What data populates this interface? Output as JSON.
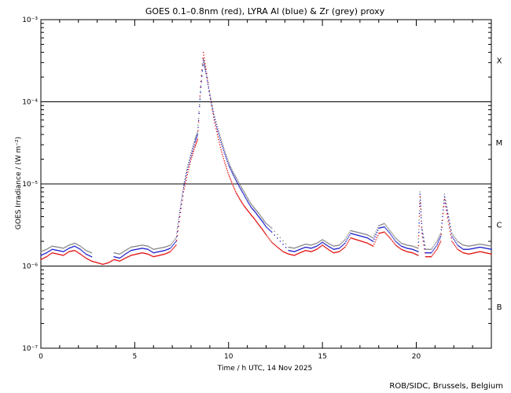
{
  "chart_data": {
    "type": "scatter",
    "title": "GOES 0.1–0.8nm (red), LYRA Al (blue) & Zr (grey) proxy",
    "xlabel": "Time / h UTC, 14 Nov 2025",
    "ylabel": "GOES Irradiance / (W m⁻²)",
    "credit": "ROB/SIDC, Brussels, Belgium",
    "xlim": [
      0,
      24
    ],
    "ylim": [
      1e-07,
      0.001
    ],
    "yscale": "log",
    "grid": false,
    "x_ticks": [
      {
        "value": 0,
        "label": "0"
      },
      {
        "value": 5,
        "label": "5"
      },
      {
        "value": 10,
        "label": "10"
      },
      {
        "value": 15,
        "label": "15"
      },
      {
        "value": 20,
        "label": "20"
      }
    ],
    "y_ticks": [
      {
        "value": 1e-07,
        "label": "10⁻⁷"
      },
      {
        "value": 1e-06,
        "label": "10⁻⁶"
      },
      {
        "value": 1e-05,
        "label": "10⁻⁵"
      },
      {
        "value": 0.0001,
        "label": "10⁻⁴"
      },
      {
        "value": 0.001,
        "label": "10⁻³"
      }
    ],
    "threshold_lines": [
      1e-06,
      1e-05,
      0.0001
    ],
    "flare_classes": [
      {
        "label": "X",
        "value": 0.00032
      },
      {
        "label": "M",
        "value": 3.2e-05
      },
      {
        "label": "C",
        "value": 3.2e-06
      },
      {
        "label": "B",
        "value": 3.2e-07
      }
    ],
    "series": [
      {
        "color": "#e00000",
        "x": [
          0,
          0.3,
          0.6,
          0.9,
          1.2,
          1.5,
          1.8,
          2.1,
          2.4,
          2.7,
          3.0,
          3.3,
          3.6,
          3.9,
          4.2,
          4.5,
          4.8,
          5.1,
          5.4,
          5.7,
          6.0,
          6.3,
          6.6,
          6.9,
          7.2,
          7.4,
          7.6,
          7.8,
          8.0,
          8.2,
          8.35,
          8.5,
          8.65,
          8.8,
          9.0,
          9.2,
          9.4,
          9.6,
          9.8,
          10.0,
          10.2,
          10.4,
          10.6,
          10.8,
          11.0,
          11.2,
          11.4,
          11.6,
          11.8,
          12.0,
          12.3,
          12.6,
          12.9,
          13.2,
          13.5,
          13.8,
          14.1,
          14.4,
          14.7,
          15.0,
          15.3,
          15.6,
          15.9,
          16.2,
          16.5,
          16.8,
          17.1,
          17.4,
          17.7,
          18.0,
          18.3,
          18.6,
          18.9,
          19.2,
          19.5,
          19.8,
          20.1,
          20.2,
          20.3,
          20.5,
          20.8,
          21.1,
          21.3,
          21.5,
          21.7,
          21.9,
          22.2,
          22.5,
          22.8,
          23.1,
          23.4,
          23.7,
          24.0
        ],
        "y": [
          1.2e-06,
          1.3e-06,
          1.45e-06,
          1.4e-06,
          1.35e-06,
          1.5e-06,
          1.55e-06,
          1.4e-06,
          1.25e-06,
          1.15e-06,
          1.1e-06,
          1.05e-06,
          1.1e-06,
          1.2e-06,
          1.15e-06,
          1.25e-06,
          1.35e-06,
          1.4e-06,
          1.45e-06,
          1.4e-06,
          1.3e-06,
          1.35e-06,
          1.4e-06,
          1.5e-06,
          1.8e-06,
          4e-06,
          8e-06,
          1.3e-05,
          2e-05,
          2.8e-05,
          3.5e-05,
          0.00015,
          0.0004,
          0.00025,
          0.00012,
          6.5e-05,
          4e-05,
          2.6e-05,
          1.8e-05,
          1.3e-05,
          1e-05,
          7.8e-06,
          6.5e-06,
          5.5e-06,
          4.8e-06,
          4.2e-06,
          3.7e-06,
          3.2e-06,
          2.8e-06,
          2.4e-06,
          1.95e-06,
          1.7e-06,
          1.5e-06,
          1.4e-06,
          1.35e-06,
          1.45e-06,
          1.55e-06,
          1.5e-06,
          1.6e-06,
          1.8e-06,
          1.6e-06,
          1.45e-06,
          1.5e-06,
          1.7e-06,
          2.2e-06,
          2.1e-06,
          2e-06,
          1.9e-06,
          1.75e-06,
          2.5e-06,
          2.6e-06,
          2.2e-06,
          1.8e-06,
          1.6e-06,
          1.5e-06,
          1.45e-06,
          1.35e-06,
          7e-06,
          2.5e-06,
          1.3e-06,
          1.3e-06,
          1.6e-06,
          2e-06,
          6.5e-06,
          3.5e-06,
          2e-06,
          1.6e-06,
          1.45e-06,
          1.4e-06,
          1.45e-06,
          1.5e-06,
          1.45e-06,
          1.4e-06
        ]
      },
      {
        "color": "#1010c8",
        "x": [
          0,
          0.3,
          0.6,
          0.9,
          1.2,
          1.5,
          1.8,
          2.1,
          2.4,
          2.7,
          3.9,
          4.2,
          4.5,
          4.8,
          5.1,
          5.4,
          5.7,
          6.0,
          6.3,
          6.6,
          6.9,
          7.2,
          7.4,
          7.6,
          7.8,
          8.0,
          8.2,
          8.35,
          8.5,
          8.65,
          8.8,
          9.0,
          9.2,
          9.4,
          9.6,
          9.8,
          10.0,
          10.2,
          10.4,
          10.6,
          10.8,
          11.0,
          11.2,
          11.4,
          11.6,
          11.8,
          12.0,
          12.3,
          13.2,
          13.5,
          13.8,
          14.1,
          14.4,
          14.7,
          15.0,
          15.3,
          15.6,
          15.9,
          16.2,
          16.5,
          16.8,
          17.1,
          17.4,
          17.7,
          18.0,
          18.3,
          18.6,
          18.9,
          19.2,
          19.5,
          19.8,
          20.1,
          20.2,
          20.3,
          20.5,
          20.8,
          21.1,
          21.3,
          21.5,
          21.7,
          21.9,
          22.2,
          22.5,
          22.8,
          23.1,
          23.4,
          23.7,
          24.0
        ],
        "y": [
          1.35e-06,
          1.45e-06,
          1.6e-06,
          1.55e-06,
          1.5e-06,
          1.65e-06,
          1.75e-06,
          1.6e-06,
          1.4e-06,
          1.3e-06,
          1.3e-06,
          1.25e-06,
          1.4e-06,
          1.55e-06,
          1.6e-06,
          1.65e-06,
          1.6e-06,
          1.45e-06,
          1.5e-06,
          1.55e-06,
          1.65e-06,
          2e-06,
          4.5e-06,
          9e-06,
          1.5e-05,
          2.2e-05,
          3.2e-05,
          4e-05,
          0.00013,
          0.00032,
          0.00022,
          0.00012,
          7e-05,
          4.6e-05,
          3.2e-05,
          2.3e-05,
          1.7e-05,
          1.35e-05,
          1.1e-05,
          9e-06,
          7.5e-06,
          6.2e-06,
          5.2e-06,
          4.6e-06,
          4e-06,
          3.5e-06,
          3e-06,
          2.6e-06,
          1.55e-06,
          1.5e-06,
          1.6e-06,
          1.7e-06,
          1.65e-06,
          1.75e-06,
          1.95e-06,
          1.75e-06,
          1.6e-06,
          1.65e-06,
          1.9e-06,
          2.5e-06,
          2.4e-06,
          2.3e-06,
          2.2e-06,
          2e-06,
          2.9e-06,
          3e-06,
          2.5e-06,
          2e-06,
          1.75e-06,
          1.65e-06,
          1.6e-06,
          1.5e-06,
          7.5e-06,
          2.8e-06,
          1.45e-06,
          1.45e-06,
          1.8e-06,
          2.3e-06,
          7e-06,
          4e-06,
          2.3e-06,
          1.8e-06,
          1.6e-06,
          1.6e-06,
          1.65e-06,
          1.7e-06,
          1.65e-06,
          1.6e-06
        ]
      },
      {
        "color": "#808080",
        "x": [
          0,
          0.3,
          0.6,
          0.9,
          1.2,
          1.5,
          1.8,
          2.1,
          2.4,
          2.7,
          3.9,
          4.2,
          4.5,
          4.8,
          5.1,
          5.4,
          5.7,
          6.0,
          6.3,
          6.6,
          6.9,
          7.2,
          7.4,
          7.6,
          7.8,
          8.0,
          8.2,
          8.35,
          8.5,
          8.65,
          8.8,
          9.0,
          9.2,
          9.4,
          9.6,
          9.8,
          10.0,
          10.2,
          10.4,
          10.6,
          10.8,
          11.0,
          11.2,
          11.4,
          11.6,
          11.8,
          12.0,
          12.3,
          13.2,
          13.5,
          13.8,
          14.1,
          14.4,
          14.7,
          15.0,
          15.3,
          15.6,
          15.9,
          16.2,
          16.5,
          16.8,
          17.1,
          17.4,
          17.7,
          18.0,
          18.3,
          18.6,
          18.9,
          19.2,
          19.5,
          19.8,
          20.1,
          20.2,
          20.3,
          20.5,
          20.8,
          21.1,
          21.3,
          21.5,
          21.7,
          21.9,
          22.2,
          22.5,
          22.8,
          23.1,
          23.4,
          23.7,
          24.0
        ],
        "y": [
          1.5e-06,
          1.6e-06,
          1.75e-06,
          1.7e-06,
          1.65e-06,
          1.8e-06,
          1.9e-06,
          1.75e-06,
          1.55e-06,
          1.45e-06,
          1.45e-06,
          1.4e-06,
          1.55e-06,
          1.7e-06,
          1.75e-06,
          1.8e-06,
          1.75e-06,
          1.6e-06,
          1.65e-06,
          1.7e-06,
          1.8e-06,
          2.2e-06,
          4.8e-06,
          9.5e-06,
          1.6e-05,
          2.4e-05,
          3.5e-05,
          4.3e-05,
          0.000135,
          0.00033,
          0.00023,
          0.000125,
          7.5e-05,
          5e-05,
          3.5e-05,
          2.5e-05,
          1.85e-05,
          1.45e-05,
          1.2e-05,
          9.8e-06,
          8.2e-06,
          6.8e-06,
          5.7e-06,
          5e-06,
          4.4e-06,
          3.8e-06,
          3.3e-06,
          2.9e-06,
          1.7e-06,
          1.65e-06,
          1.75e-06,
          1.85e-06,
          1.8e-06,
          1.9e-06,
          2.1e-06,
          1.9e-06,
          1.75e-06,
          1.8e-06,
          2.1e-06,
          2.7e-06,
          2.6e-06,
          2.5e-06,
          2.4e-06,
          2.2e-06,
          3.1e-06,
          3.3e-06,
          2.7e-06,
          2.2e-06,
          1.9e-06,
          1.8e-06,
          1.75e-06,
          1.65e-06,
          8e-06,
          3e-06,
          1.6e-06,
          1.6e-06,
          2e-06,
          2.5e-06,
          7.5e-06,
          4.3e-06,
          2.5e-06,
          2e-06,
          1.8e-06,
          1.75e-06,
          1.8e-06,
          1.85e-06,
          1.8e-06,
          1.75e-06
        ]
      }
    ]
  }
}
